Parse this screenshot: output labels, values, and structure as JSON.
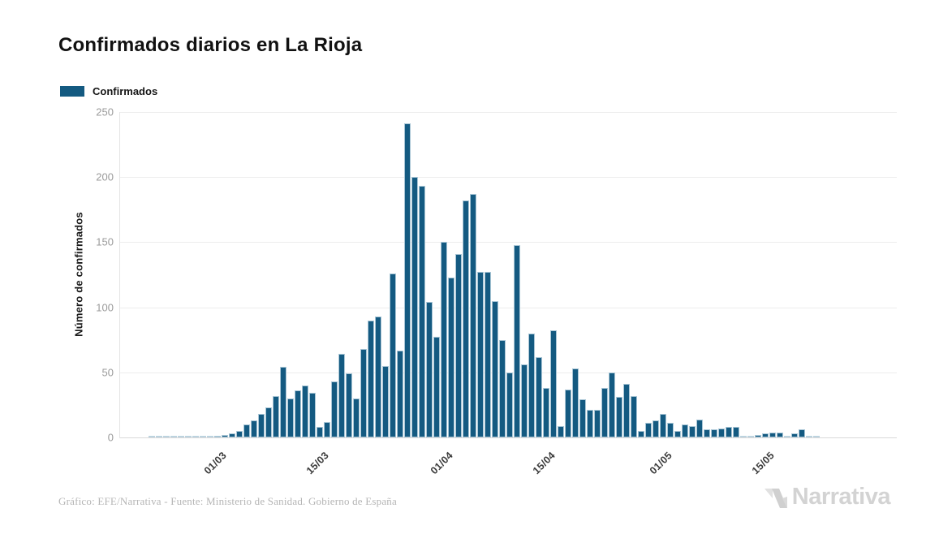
{
  "title": "Confirmados diarios en La Rioja",
  "legend": {
    "label": "Confirmados"
  },
  "footer": {
    "credit": "Gráfico: EFE/Narrativa - Fuente: Ministerio de Sanidad. Gobierno de España",
    "brand": "Narrativa"
  },
  "colors": {
    "bar": "#145A81",
    "bar_zero": "#BCD3DF",
    "bar_border": "#A9C6D6",
    "grid": "#EDEDED",
    "axis_text": "#9B9B9B",
    "tick_text": "#3A3A3A",
    "title_text": "#111111",
    "footer_text": "#B5B5B5",
    "brand_text": "#D3D3D3"
  },
  "chart_data": {
    "type": "bar",
    "title": "Confirmados diarios en La Rioja",
    "series_name": "Confirmados",
    "ylabel": "Número de confirmados",
    "xlabel": "",
    "ylim": [
      0,
      250
    ],
    "y_ticks": [
      0,
      50,
      100,
      150,
      200,
      250
    ],
    "grid": "horizontal",
    "legend_position": "top-left",
    "x_tick_labels": [
      "01/03",
      "15/03",
      "01/04",
      "15/04",
      "01/05",
      "15/05"
    ],
    "x_tick_indices": [
      9,
      23,
      40,
      54,
      70,
      84
    ],
    "values": [
      0,
      0,
      0,
      0,
      0,
      0,
      0,
      0,
      0,
      1,
      2,
      3,
      5,
      10,
      13,
      18,
      23,
      32,
      54,
      30,
      36,
      40,
      34,
      8,
      12,
      43,
      64,
      49,
      30,
      68,
      90,
      93,
      55,
      126,
      67,
      241,
      200,
      193,
      104,
      77,
      150,
      123,
      141,
      182,
      187,
      127,
      127,
      105,
      75,
      50,
      148,
      56,
      80,
      62,
      38,
      82,
      9,
      37,
      53,
      29,
      21,
      21,
      38,
      50,
      31,
      41,
      32,
      5,
      11,
      13,
      18,
      11,
      5,
      10,
      9,
      14,
      6,
      6,
      7,
      8,
      8,
      0,
      0,
      2,
      3,
      4,
      4,
      0,
      3,
      6,
      0,
      0
    ]
  }
}
